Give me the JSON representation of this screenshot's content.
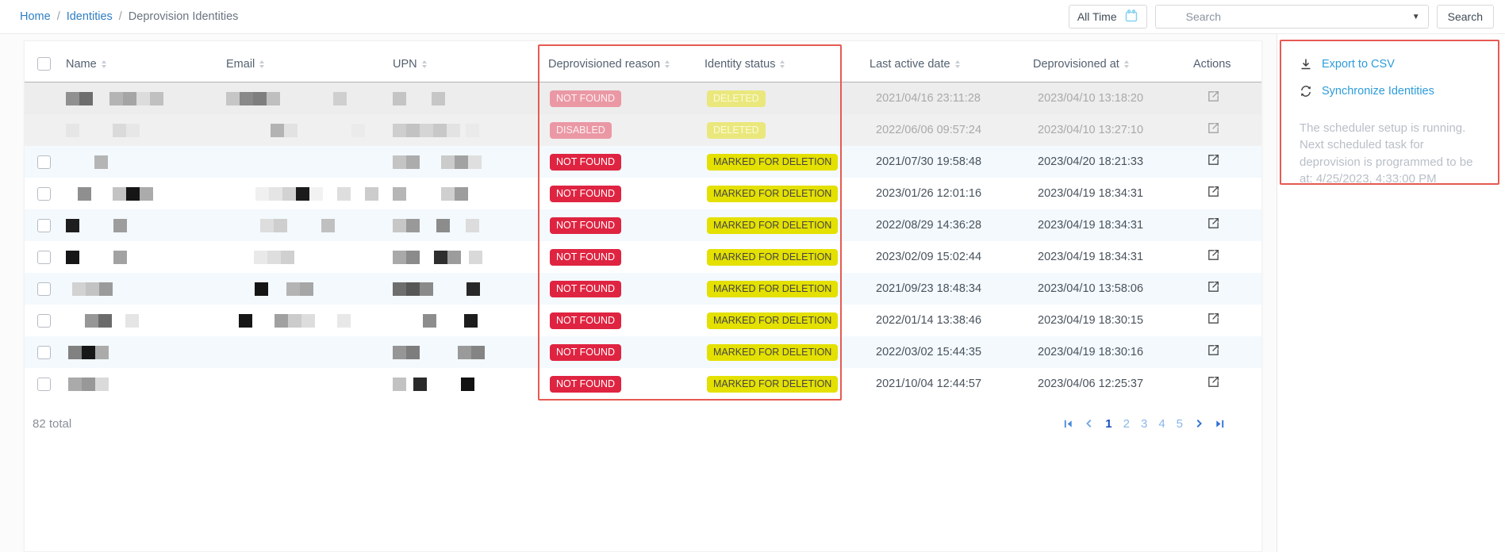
{
  "breadcrumb": {
    "separator": "/",
    "items": [
      {
        "label": "Home",
        "link": true
      },
      {
        "label": "Identities",
        "link": true
      },
      {
        "label": "Deprovision Identities",
        "link": false
      }
    ]
  },
  "topbar": {
    "date_filter_label": "All Time",
    "search_placeholder": "Search",
    "search_button_label": "Search"
  },
  "table": {
    "columns": [
      {
        "label": "Name",
        "slug": "name",
        "sortable": true
      },
      {
        "label": "Email",
        "slug": "email",
        "sortable": true
      },
      {
        "label": "UPN",
        "slug": "upn",
        "sortable": true
      },
      {
        "label": "Deprovisioned reason",
        "slug": "deprovisioned-reason",
        "sortable": true
      },
      {
        "label": "Identity status",
        "slug": "identity-status",
        "sortable": true
      },
      {
        "label": "Last active date",
        "slug": "last-active-date",
        "sortable": true
      },
      {
        "label": "Deprovisioned at",
        "slug": "deprovisioned-at",
        "sortable": true
      },
      {
        "label": "Actions",
        "slug": "actions",
        "sortable": false
      }
    ],
    "total_label": "82 total",
    "rows": [
      {
        "disabled": true,
        "has_checkbox": false,
        "reason": {
          "label": "NOT FOUND",
          "variant": "red-muted"
        },
        "status": {
          "label": "DELETED",
          "variant": "yellow-muted"
        },
        "last_active": "2021/04/16 23:11:28",
        "deprovisioned_at": "2023/04/10 13:18:20",
        "redact": {
          "name": [
            {
              "o": 0,
              "c": [
                "#909090",
                "#6d6d6d"
              ]
            },
            {
              "o": 55,
              "c": [
                "#b4b4b4",
                "#a5a5a5",
                "#dcdcdc",
                "#c0c0c0"
              ]
            }
          ],
          "email": [
            {
              "o": 0,
              "c": [
                "#c6c6c6",
                "#898989",
                "#7e7e7e",
                "#bfbfbf"
              ]
            },
            {
              "o": 135,
              "c": [
                "#cfcfcf"
              ]
            }
          ],
          "upn": [
            {
              "o": 0,
              "c": [
                "#c4c4c4"
              ]
            },
            {
              "o": 49,
              "c": [
                "#c6c6c6"
              ]
            }
          ]
        }
      },
      {
        "disabled": true,
        "has_checkbox": false,
        "reason": {
          "label": "DISABLED",
          "variant": "red-muted"
        },
        "status": {
          "label": "DELETED",
          "variant": "yellow-muted"
        },
        "last_active": "2022/06/06 09:57:24",
        "deprovisioned_at": "2023/04/10 13:27:10",
        "redact": {
          "name": [
            {
              "o": 0,
              "c": [
                "#e6e6e6"
              ]
            },
            {
              "o": 59,
              "c": [
                "#dadada",
                "#e7e7e7"
              ]
            }
          ],
          "email": [
            {
              "o": 56,
              "c": [
                "#b3b3b3",
                "#e2e2e2"
              ]
            },
            {
              "o": 158,
              "c": [
                "#ebebeb"
              ]
            }
          ],
          "upn": [
            {
              "o": 0,
              "c": [
                "#cecece",
                "#c2c2c2",
                "#d5d5d5",
                "#c8c8c8",
                "#e3e3e3"
              ]
            },
            {
              "o": 92,
              "c": [
                "#eaeaea"
              ]
            }
          ]
        }
      },
      {
        "disabled": false,
        "has_checkbox": true,
        "reason": {
          "label": "NOT FOUND",
          "variant": "red"
        },
        "status": {
          "label": "MARKED FOR DELETION",
          "variant": "yellow"
        },
        "last_active": "2021/07/30 19:58:48",
        "deprovisioned_at": "2023/04/20 18:21:33",
        "redact": {
          "name": [
            {
              "o": 36,
              "c": [
                "#b5b5b5"
              ]
            }
          ],
          "email": [],
          "upn": [
            {
              "o": 0,
              "c": [
                "#c4c4c4",
                "#acacac"
              ]
            },
            {
              "o": 61,
              "c": [
                "#cbcbcb",
                "#a2a2a2",
                "#dfdfdf"
              ]
            }
          ]
        }
      },
      {
        "disabled": false,
        "has_checkbox": true,
        "reason": {
          "label": "NOT FOUND",
          "variant": "red"
        },
        "status": {
          "label": "MARKED FOR DELETION",
          "variant": "yellow"
        },
        "last_active": "2023/01/26 12:01:16",
        "deprovisioned_at": "2023/04/19 18:34:31",
        "redact": {
          "name": [
            {
              "o": 15,
              "c": [
                "#8f8f8f"
              ]
            },
            {
              "o": 59,
              "c": [
                "#c3c3c3",
                "#161616",
                "#ababab"
              ]
            }
          ],
          "email": [
            {
              "o": 37,
              "c": [
                "#f0f0f0",
                "#e5e5e5",
                "#d2d2d2",
                "#1b1b1b",
                "#f2f2f2"
              ]
            },
            {
              "o": 140,
              "c": [
                "#dedede"
              ]
            },
            {
              "o": 175,
              "c": [
                "#cccccc"
              ]
            }
          ],
          "upn": [
            {
              "o": 0,
              "c": [
                "#b6b6b6"
              ]
            },
            {
              "o": 61,
              "c": [
                "#cfcfcf",
                "#9d9d9d"
              ]
            }
          ]
        }
      },
      {
        "disabled": false,
        "has_checkbox": true,
        "reason": {
          "label": "NOT FOUND",
          "variant": "red"
        },
        "status": {
          "label": "MARKED FOR DELETION",
          "variant": "yellow"
        },
        "last_active": "2022/08/29 14:36:28",
        "deprovisioned_at": "2023/04/19 18:34:31",
        "redact": {
          "name": [
            {
              "o": 0,
              "c": [
                "#1e1e1e"
              ]
            },
            {
              "o": 60,
              "c": [
                "#9d9d9d"
              ]
            }
          ],
          "email": [
            {
              "o": 43,
              "c": [
                "#dddddd",
                "#cecece"
              ]
            },
            {
              "o": 120,
              "c": [
                "#c0c0c0"
              ]
            }
          ],
          "upn": [
            {
              "o": 0,
              "c": [
                "#c7c7c7",
                "#999999"
              ]
            },
            {
              "o": 55,
              "c": [
                "#8c8c8c"
              ]
            },
            {
              "o": 92,
              "c": [
                "#dcdcdc"
              ]
            }
          ]
        }
      },
      {
        "disabled": false,
        "has_checkbox": true,
        "reason": {
          "label": "NOT FOUND",
          "variant": "red"
        },
        "status": {
          "label": "MARKED FOR DELETION",
          "variant": "yellow"
        },
        "last_active": "2023/02/09 15:02:44",
        "deprovisioned_at": "2023/04/19 18:34:31",
        "redact": {
          "name": [
            {
              "o": 0,
              "c": [
                "#161616"
              ]
            },
            {
              "o": 60,
              "c": [
                "#a2a2a2"
              ]
            }
          ],
          "email": [
            {
              "o": 35,
              "c": [
                "#e9e9e9",
                "#dedede",
                "#d0d0d0"
              ]
            }
          ],
          "upn": [
            {
              "o": 0,
              "c": [
                "#a9a9a9",
                "#8b8b8b"
              ]
            },
            {
              "o": 52,
              "c": [
                "#2e2e2e",
                "#9c9c9c"
              ]
            },
            {
              "o": 96,
              "c": [
                "#d9d9d9"
              ]
            }
          ]
        }
      },
      {
        "disabled": false,
        "has_checkbox": true,
        "reason": {
          "label": "NOT FOUND",
          "variant": "red"
        },
        "status": {
          "label": "MARKED FOR DELETION",
          "variant": "yellow"
        },
        "last_active": "2021/09/23 18:48:34",
        "deprovisioned_at": "2023/04/10 13:58:06",
        "redact": {
          "name": [
            {
              "o": 8,
              "c": [
                "#d2d2d2",
                "#c3c3c3",
                "#9b9b9b"
              ]
            }
          ],
          "email": [
            {
              "o": 36,
              "c": [
                "#151515"
              ]
            },
            {
              "o": 76,
              "c": [
                "#b4b4b4",
                "#a6a6a6"
              ]
            }
          ],
          "upn": [
            {
              "o": 0,
              "c": [
                "#6e6e6e",
                "#575757",
                "#8a8a8a"
              ]
            },
            {
              "o": 93,
              "c": [
                "#282828"
              ]
            }
          ]
        }
      },
      {
        "disabled": false,
        "has_checkbox": true,
        "reason": {
          "label": "NOT FOUND",
          "variant": "red"
        },
        "status": {
          "label": "MARKED FOR DELETION",
          "variant": "yellow"
        },
        "last_active": "2022/01/14 13:38:46",
        "deprovisioned_at": "2023/04/19 18:30:15",
        "redact": {
          "name": [
            {
              "o": 24,
              "c": [
                "#979797",
                "#6b6b6b"
              ]
            },
            {
              "o": 75,
              "c": [
                "#e5e5e5"
              ]
            }
          ],
          "email": [
            {
              "o": 16,
              "c": [
                "#161616"
              ]
            },
            {
              "o": 61,
              "c": [
                "#a0a0a0",
                "#cbcbcb",
                "#dddddd"
              ]
            },
            {
              "o": 140,
              "c": [
                "#e8e8e8"
              ]
            }
          ],
          "upn": [
            {
              "o": 38,
              "c": [
                "#8d8d8d"
              ]
            },
            {
              "o": 90,
              "c": [
                "#1d1d1d"
              ]
            }
          ]
        }
      },
      {
        "disabled": false,
        "has_checkbox": true,
        "reason": {
          "label": "NOT FOUND",
          "variant": "red"
        },
        "status": {
          "label": "MARKED FOR DELETION",
          "variant": "yellow"
        },
        "last_active": "2022/03/02 15:44:35",
        "deprovisioned_at": "2023/04/19 18:30:16",
        "redact": {
          "name": [
            {
              "o": 3,
              "c": [
                "#818181",
                "#171717",
                "#ababab"
              ]
            }
          ],
          "email": [],
          "upn": [
            {
              "o": 0,
              "c": [
                "#969696",
                "#7d7d7d"
              ]
            },
            {
              "o": 82,
              "c": [
                "#9a9a9a",
                "#848484"
              ]
            }
          ]
        }
      },
      {
        "disabled": false,
        "has_checkbox": true,
        "reason": {
          "label": "NOT FOUND",
          "variant": "red"
        },
        "status": {
          "label": "MARKED FOR DELETION",
          "variant": "yellow"
        },
        "last_active": "2021/10/04 12:44:57",
        "deprovisioned_at": "2023/04/06 12:25:37",
        "redact": {
          "name": [
            {
              "o": 3,
              "c": [
                "#aaaaaa",
                "#989898",
                "#dadada"
              ]
            }
          ],
          "email": [],
          "upn": [
            {
              "o": 0,
              "c": [
                "#c2c2c2"
              ]
            },
            {
              "o": 26,
              "c": [
                "#2a2a2a"
              ]
            },
            {
              "o": 86,
              "c": [
                "#121212"
              ]
            }
          ]
        }
      }
    ]
  },
  "pagination": {
    "pages": [
      "1",
      "2",
      "3",
      "4",
      "5"
    ],
    "active": "1"
  },
  "side_panel": {
    "export_label": "Export to CSV",
    "sync_label": "Synchronize Identities",
    "scheduler_note": "The scheduler setup is running. Next scheduled task for deprovision is programmed to be at: 4/25/2023, 4:33:00 PM"
  },
  "icons": {
    "calendar": "calendar-icon",
    "dropdown": "chevron-down-icon",
    "sort": "sort-icon",
    "row_action": "open-identity-icon",
    "export": "download-icon",
    "sync": "sync-icon",
    "pagination": [
      "first-page-icon",
      "prev-page-icon",
      "next-page-icon",
      "last-page-icon"
    ]
  },
  "colors": {
    "link_blue": "#2e7ec4",
    "panel_link_blue": "#2d9cdb",
    "badge_red": "#df2441",
    "badge_red_muted": "#eb98a5",
    "badge_yellow": "#e4e000",
    "badge_yellow_muted": "#eae87d",
    "annotation_red": "#e65a52",
    "row_alt_blue": "#f3f9fd",
    "disabled_row_gray": "#ededed"
  }
}
